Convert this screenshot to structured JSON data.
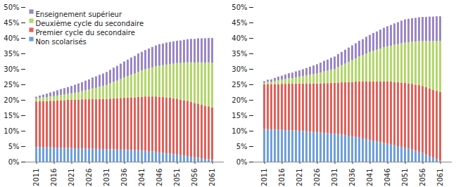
{
  "chart_data": [
    {
      "type": "bar",
      "stacked": true,
      "grid": false,
      "legend": "top-left",
      "categories": [
        "2011",
        null,
        null,
        null,
        null,
        "2016",
        null,
        null,
        null,
        null,
        "2021",
        null,
        null,
        null,
        null,
        "2026",
        null,
        null,
        null,
        null,
        "2031",
        null,
        null,
        null,
        null,
        "2036",
        null,
        null,
        null,
        null,
        "2041",
        null,
        null,
        null,
        null,
        "2046",
        null,
        null,
        null,
        null,
        "2051",
        null,
        null,
        null,
        null,
        "2056",
        null,
        null,
        null,
        null,
        "2061"
      ],
      "ylim": [
        0,
        50
      ],
      "yticks": [
        {
          "value": 0,
          "label": "0%"
        },
        {
          "value": 5,
          "label": "5%"
        },
        {
          "value": 10,
          "label": "10%"
        },
        {
          "value": 15,
          "label": "15%"
        },
        {
          "value": 20,
          "label": "20%"
        },
        {
          "value": 25,
          "label": "25%"
        },
        {
          "value": 30,
          "label": "30%"
        },
        {
          "value": 35,
          "label": "35%"
        },
        {
          "value": 40,
          "label": "40%"
        },
        {
          "value": 45,
          "label": "45%"
        },
        {
          "value": 50,
          "label": "50%"
        }
      ],
      "series": [
        {
          "name": "Non scolarisés",
          "color": "#6f9fdb",
          "values": [
            4.7,
            4.7,
            4.6,
            4.6,
            4.6,
            4.5,
            4.5,
            4.5,
            4.4,
            4.4,
            4.4,
            4.3,
            4.3,
            4.3,
            4.2,
            4.2,
            4.2,
            4.1,
            4.1,
            4.1,
            4.0,
            4.0,
            4.0,
            3.9,
            3.9,
            3.9,
            3.8,
            3.8,
            3.7,
            3.7,
            3.6,
            3.5,
            3.4,
            3.3,
            3.2,
            3.0,
            2.9,
            2.7,
            2.6,
            2.4,
            2.3,
            2.1,
            1.9,
            1.8,
            1.6,
            1.4,
            1.3,
            1.1,
            0.9,
            0.8,
            0.6
          ]
        },
        {
          "name": "Premier cycle du secondaire",
          "color": "#e2605a",
          "values": [
            14.8,
            14.9,
            15.0,
            15.0,
            15.1,
            15.2,
            15.3,
            15.4,
            15.5,
            15.6,
            15.7,
            15.8,
            15.8,
            15.9,
            16.0,
            16.0,
            16.1,
            16.1,
            16.2,
            16.2,
            16.3,
            16.4,
            16.5,
            16.6,
            16.7,
            16.8,
            16.9,
            17.0,
            17.1,
            17.3,
            17.4,
            17.6,
            17.7,
            17.8,
            17.9,
            18.0,
            18.0,
            18.1,
            18.1,
            18.1,
            18.1,
            18.0,
            18.0,
            17.9,
            17.8,
            17.6,
            17.5,
            17.4,
            17.2,
            17.1,
            16.9
          ]
        },
        {
          "name": "Deuxième cycle du secondaire",
          "color": "#b2d76a",
          "values": [
            1.0,
            1.1,
            1.2,
            1.3,
            1.4,
            1.5,
            1.6,
            1.7,
            1.8,
            1.9,
            2.0,
            2.2,
            2.4,
            2.6,
            2.9,
            3.1,
            3.4,
            3.7,
            4.0,
            4.2,
            4.5,
            4.9,
            5.3,
            5.7,
            6.1,
            6.5,
            6.9,
            7.3,
            7.7,
            8.1,
            8.5,
            8.8,
            9.1,
            9.4,
            9.7,
            10.0,
            10.3,
            10.6,
            10.9,
            11.2,
            11.5,
            11.8,
            12.1,
            12.4,
            12.7,
            13.0,
            13.3,
            13.6,
            13.9,
            14.2,
            14.5
          ]
        },
        {
          "name": "Enseignement supérieur",
          "color": "#9a86c8",
          "values": [
            0.5,
            0.7,
            0.9,
            1.1,
            1.3,
            1.5,
            1.7,
            1.9,
            2.1,
            2.2,
            2.4,
            2.6,
            2.8,
            2.9,
            3.1,
            3.3,
            3.5,
            3.7,
            3.8,
            4.0,
            4.2,
            4.4,
            4.6,
            4.8,
            5.0,
            5.2,
            5.4,
            5.6,
            5.7,
            5.9,
            6.0,
            6.2,
            6.4,
            6.6,
            6.8,
            7.0,
            7.0,
            7.1,
            7.1,
            7.2,
            7.2,
            7.3,
            7.4,
            7.5,
            7.6,
            7.7,
            7.8,
            7.8,
            7.9,
            7.9,
            8.0
          ]
        }
      ]
    },
    {
      "type": "bar",
      "stacked": true,
      "grid": false,
      "categories": [
        "2011",
        null,
        null,
        null,
        null,
        "2016",
        null,
        null,
        null,
        null,
        "2021",
        null,
        null,
        null,
        null,
        "2026",
        null,
        null,
        null,
        null,
        "2031",
        null,
        null,
        null,
        null,
        "2036",
        null,
        null,
        null,
        null,
        "2041",
        null,
        null,
        null,
        null,
        "2046",
        null,
        null,
        null,
        null,
        "2051",
        null,
        null,
        null,
        null,
        "2056",
        null,
        null,
        null,
        null,
        "2061"
      ],
      "ylim": [
        0,
        50
      ],
      "yticks": [
        {
          "value": 0,
          "label": "0%"
        },
        {
          "value": 5,
          "label": "5%"
        },
        {
          "value": 10,
          "label": "10%"
        },
        {
          "value": 15,
          "label": "15%"
        },
        {
          "value": 20,
          "label": "20%"
        },
        {
          "value": 25,
          "label": "25%"
        },
        {
          "value": 30,
          "label": "30%"
        },
        {
          "value": 35,
          "label": "35%"
        },
        {
          "value": 40,
          "label": "40%"
        },
        {
          "value": 45,
          "label": "45%"
        },
        {
          "value": 50,
          "label": "50%"
        }
      ],
      "series": [
        {
          "name": "Non scolarisés",
          "color": "#6f9fdb",
          "values": [
            10.5,
            10.5,
            10.4,
            10.4,
            10.3,
            10.3,
            10.2,
            10.2,
            10.1,
            10.1,
            10.0,
            9.9,
            9.8,
            9.7,
            9.6,
            9.5,
            9.4,
            9.3,
            9.2,
            9.1,
            9.0,
            8.9,
            8.8,
            8.6,
            8.4,
            8.2,
            8.0,
            7.8,
            7.5,
            7.3,
            7.0,
            6.8,
            6.5,
            6.3,
            6.0,
            5.8,
            5.5,
            5.3,
            5.0,
            4.8,
            4.5,
            4.2,
            3.9,
            3.5,
            3.2,
            2.8,
            2.3,
            1.8,
            1.3,
            0.8,
            0.3
          ]
        },
        {
          "name": "Premier cycle du secondaire",
          "color": "#e2605a",
          "values": [
            14.5,
            14.6,
            14.6,
            14.7,
            14.8,
            14.9,
            15.0,
            15.1,
            15.1,
            15.2,
            15.3,
            15.4,
            15.5,
            15.6,
            15.7,
            15.8,
            15.9,
            16.1,
            16.2,
            16.4,
            16.5,
            16.7,
            16.9,
            17.1,
            17.4,
            17.6,
            17.9,
            18.2,
            18.4,
            18.7,
            19.0,
            19.2,
            19.5,
            19.7,
            20.0,
            20.2,
            20.4,
            20.5,
            20.7,
            20.8,
            21.0,
            21.1,
            21.3,
            21.4,
            21.6,
            21.7,
            21.8,
            21.9,
            22.0,
            22.1,
            22.2
          ]
        },
        {
          "name": "Deuxième cycle du secondaire",
          "color": "#b2d76a",
          "values": [
            0.5,
            0.7,
            0.8,
            1.0,
            1.2,
            1.3,
            1.5,
            1.7,
            1.8,
            2.0,
            2.2,
            2.4,
            2.6,
            2.8,
            3.0,
            3.2,
            3.5,
            3.8,
            4.0,
            4.3,
            4.5,
            5.0,
            5.5,
            6.0,
            6.5,
            7.0,
            7.5,
            8.0,
            8.5,
            9.0,
            9.5,
            9.9,
            10.2,
            10.6,
            11.0,
            11.3,
            11.6,
            12.0,
            12.3,
            12.7,
            13.0,
            13.3,
            13.6,
            13.9,
            14.2,
            14.5,
            14.9,
            15.3,
            15.7,
            16.1,
            16.5
          ]
        },
        {
          "name": "Enseignement supérieur",
          "color": "#9a86c8",
          "values": [
            0.5,
            0.7,
            0.8,
            1.0,
            1.2,
            1.3,
            1.5,
            1.6,
            1.8,
            1.9,
            2.0,
            2.2,
            2.4,
            2.6,
            2.8,
            3.0,
            3.2,
            3.4,
            3.6,
            3.8,
            4.0,
            4.2,
            4.3,
            4.5,
            4.6,
            4.8,
            4.9,
            5.1,
            5.2,
            5.4,
            5.5,
            5.7,
            5.9,
            6.1,
            6.3,
            6.5,
            6.7,
            6.9,
            7.1,
            7.3,
            7.5,
            7.6,
            7.6,
            7.7,
            7.7,
            7.8,
            7.8,
            7.9,
            7.9,
            8.0,
            8.0
          ]
        }
      ]
    }
  ]
}
